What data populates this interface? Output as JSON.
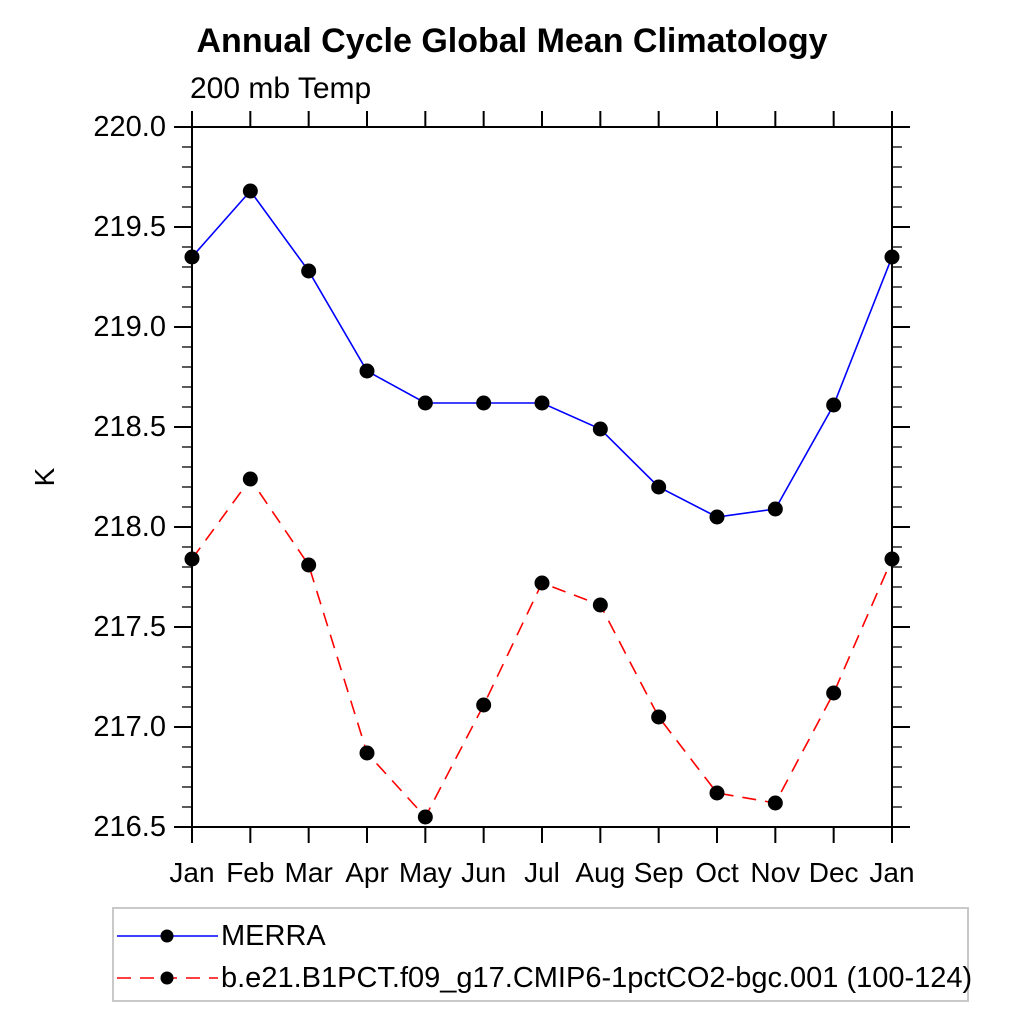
{
  "page": {
    "background": "#ffffff"
  },
  "chart_data": {
    "type": "line",
    "title": "Annual Cycle Global Mean Climatology",
    "subtitle": "200 mb Temp",
    "ylabel": "K",
    "xlabel": "",
    "ylim": [
      216.5,
      220.0
    ],
    "ytick_major_step": 0.5,
    "ytick_minor_step": 0.1,
    "ytick_labels": [
      "220.0",
      "219.5",
      "219.0",
      "218.5",
      "218.0",
      "217.5",
      "217.0",
      "216.5"
    ],
    "categories": [
      "Jan",
      "Feb",
      "Mar",
      "Apr",
      "May",
      "Jun",
      "Jul",
      "Aug",
      "Sep",
      "Oct",
      "Nov",
      "Dec",
      "Jan"
    ],
    "series": [
      {
        "name": "MERRA",
        "color": "#0000ff",
        "line_style": "solid",
        "marker": "filled-circle",
        "marker_color": "#000000",
        "values": [
          219.35,
          219.68,
          219.28,
          218.78,
          218.62,
          218.62,
          218.62,
          218.49,
          218.2,
          218.05,
          218.09,
          218.61,
          219.35
        ]
      },
      {
        "name": "b.e21.B1PCT.f09_g17.CMIP6-1pctCO2-bgc.001 (100-124)",
        "color": "#ff0000",
        "line_style": "dashed",
        "marker": "filled-circle",
        "marker_color": "#000000",
        "values": [
          217.84,
          218.24,
          217.81,
          216.87,
          216.55,
          217.11,
          217.72,
          217.61,
          217.05,
          216.67,
          216.62,
          217.17,
          217.84
        ]
      }
    ],
    "grid": false,
    "legend_position": "bottom-left",
    "axis_color": "#000000",
    "legend_border_color": "#c9c9c9"
  }
}
